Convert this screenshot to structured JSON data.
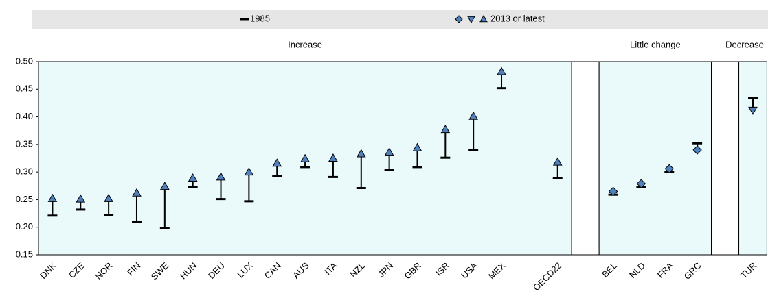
{
  "chart_data": {
    "type": "dumbbell",
    "series": [
      {
        "name": "1985",
        "color": "#000000"
      },
      {
        "name": "2013 or latest",
        "color": "#4f81bd"
      }
    ],
    "ylim": [
      0.15,
      0.5
    ],
    "yticks": [
      0.15,
      {
        "value": 0.2,
        "label": "0.20"
      },
      0.25,
      {
        "value": 0.3,
        "label": "0.30"
      },
      0.35,
      {
        "value": 0.4,
        "label": "0.40"
      },
      0.45,
      {
        "value": 0.5,
        "label": "0.50"
      }
    ],
    "background": "#eafafb",
    "panels": [
      {
        "title": "Increase",
        "marker": "triangle-up",
        "categories": [
          "DNK",
          "CZE",
          "NOR",
          "FIN",
          "SWE",
          "HUN",
          "DEU",
          "LUX",
          "CAN",
          "AUS",
          "ITA",
          "NZL",
          "JPN",
          "GBR",
          "ISR",
          "USA",
          "MEX",
          null,
          "OECD22"
        ],
        "series": [
          {
            "values": [
              0.221,
              0.232,
              0.222,
              0.209,
              0.198,
              0.273,
              0.251,
              0.247,
              0.293,
              0.309,
              0.291,
              0.271,
              0.304,
              0.309,
              0.326,
              0.34,
              0.452,
              null,
              0.289
            ]
          },
          {
            "values": [
              0.252,
              0.251,
              0.252,
              0.262,
              0.274,
              0.289,
              0.291,
              0.3,
              0.316,
              0.324,
              0.325,
              0.333,
              0.336,
              0.344,
              0.377,
              0.401,
              0.482,
              null,
              0.318
            ]
          }
        ]
      },
      {
        "title": "Little change",
        "marker": "diamond",
        "categories": [
          "BEL",
          "NLD",
          "FRA",
          "GRC"
        ],
        "series": [
          {
            "values": [
              0.259,
              0.273,
              0.3,
              0.352
            ]
          },
          {
            "values": [
              0.265,
              0.279,
              0.306,
              0.34
            ]
          }
        ]
      },
      {
        "title": "Decrease",
        "marker": "triangle-down",
        "categories": [
          "TUR"
        ],
        "series": [
          {
            "values": [
              0.434
            ]
          },
          {
            "values": [
              0.412
            ]
          }
        ]
      }
    ]
  }
}
